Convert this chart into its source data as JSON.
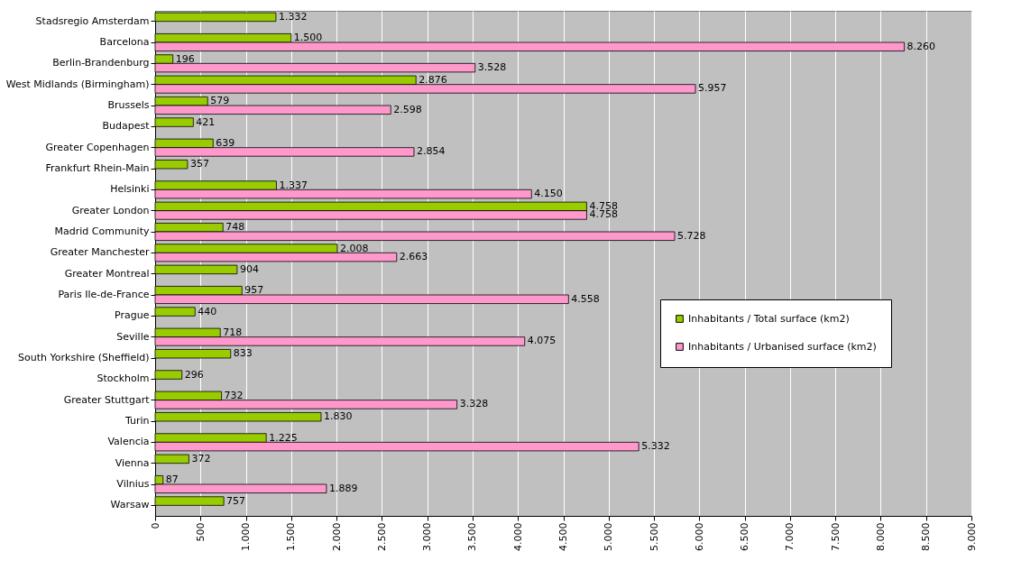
{
  "chart_data": {
    "type": "bar",
    "orientation": "horizontal",
    "categories": [
      "Stadsregio Amsterdam",
      "Barcelona",
      "Berlin-Brandenburg",
      "West Midlands (Birmingham)",
      "Brussels",
      "Budapest",
      "Greater Copenhagen",
      "Frankfurt Rhein-Main",
      "Helsinki",
      "Greater London",
      "Madrid Community",
      "Greater Manchester",
      "Greater Montreal",
      "Paris Ile-de-France",
      "Prague",
      "Seville",
      "South Yorkshire (Sheffield)",
      "Stockholm",
      "Greater Stuttgart",
      "Turin",
      "Valencia",
      "Vienna",
      "Vilnius",
      "Warsaw"
    ],
    "series": [
      {
        "name": "Inhabitants / Total surface (km2)",
        "color": "#99cc00",
        "values": [
          1332,
          1500,
          196,
          2876,
          579,
          421,
          639,
          357,
          1337,
          4758,
          748,
          2008,
          904,
          957,
          440,
          718,
          833,
          296,
          732,
          1830,
          1225,
          372,
          87,
          757
        ],
        "value_labels": [
          "1.332",
          "1.500",
          "196",
          "2.876",
          "579",
          "421",
          "639",
          "357",
          "1.337",
          "4.758",
          "748",
          "2.008",
          "904",
          "957",
          "440",
          "718",
          "833",
          "296",
          "732",
          "1.830",
          "1.225",
          "372",
          "87",
          "757"
        ]
      },
      {
        "name": "Inhabitants / Urbanised surface (km2)",
        "color": "#ff99cc",
        "values": [
          null,
          8260,
          3528,
          5957,
          2598,
          null,
          2854,
          null,
          4150,
          4758,
          5728,
          2663,
          null,
          4558,
          null,
          4075,
          null,
          null,
          3328,
          null,
          5332,
          null,
          1889,
          null
        ],
        "value_labels": [
          null,
          "8.260",
          "3.528",
          "5.957",
          "2.598",
          null,
          "2.854",
          null,
          "4.150",
          "4.758",
          "5.728",
          "2.663",
          null,
          "4.558",
          null,
          "4.075",
          null,
          null,
          "3.328",
          null,
          "5.332",
          null,
          "1.889",
          null
        ]
      }
    ],
    "xlim": [
      0,
      9000
    ],
    "xticks": [
      0,
      500,
      {
        "value": 1000,
        "label": "1.000"
      },
      {
        "value": 1500,
        "label": "1.500"
      },
      {
        "value": 2000,
        "label": "2.000"
      },
      {
        "value": 2500,
        "label": "2.500"
      },
      {
        "value": 3000,
        "label": "3.000"
      },
      {
        "value": 3500,
        "label": "3.500"
      },
      {
        "value": 4000,
        "label": "4.000"
      },
      {
        "value": 4500,
        "label": "4.500"
      },
      {
        "value": 5000,
        "label": "5.000"
      },
      {
        "value": 5500,
        "label": "5.500"
      },
      {
        "value": 6000,
        "label": "6.000"
      },
      {
        "value": 6500,
        "label": "6.500"
      },
      {
        "value": 7000,
        "label": "7.000"
      },
      {
        "value": 7500,
        "label": "7.500"
      },
      {
        "value": 8000,
        "label": "8.000"
      },
      {
        "value": 8500,
        "label": "8.500"
      },
      {
        "value": 9000,
        "label": "9.000"
      }
    ],
    "grid": "x",
    "legend": "right"
  }
}
